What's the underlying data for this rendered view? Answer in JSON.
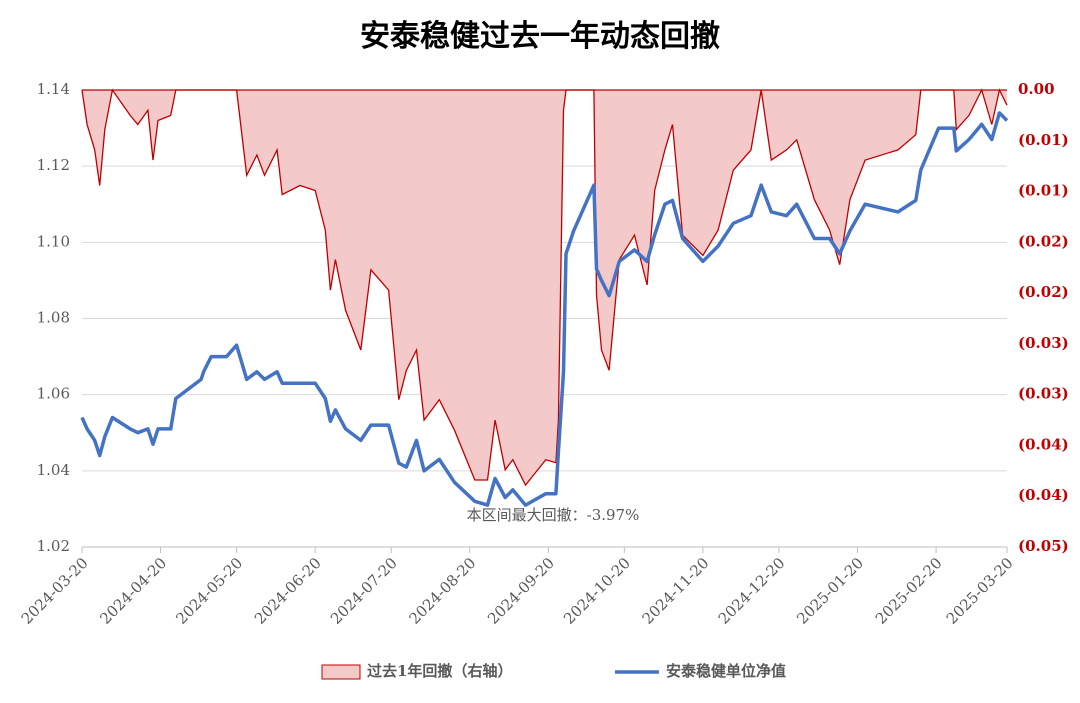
{
  "chart_data": {
    "type": "line",
    "title": "安泰稳健过去一年动态回撤",
    "annotation": "本区间最大回撤：-3.97%",
    "x": [
      "2024-03-20",
      "2024-03-22",
      "2024-03-25",
      "2024-03-27",
      "2024-03-29",
      "2024-04-01",
      "2024-04-08",
      "2024-04-11",
      "2024-04-15",
      "2024-04-17",
      "2024-04-19",
      "2024-04-24",
      "2024-04-26",
      "2024-05-06",
      "2024-05-07",
      "2024-05-10",
      "2024-05-16",
      "2024-05-20",
      "2024-05-24",
      "2024-05-28",
      "2024-05-31",
      "2024-06-05",
      "2024-06-07",
      "2024-06-14",
      "2024-06-20",
      "2024-06-24",
      "2024-06-26",
      "2024-06-28",
      "2024-07-02",
      "2024-07-08",
      "2024-07-12",
      "2024-07-19",
      "2024-07-23",
      "2024-07-26",
      "2024-07-30",
      "2024-08-02",
      "2024-08-08",
      "2024-08-14",
      "2024-08-22",
      "2024-08-27",
      "2024-08-30",
      "2024-09-03",
      "2024-09-06",
      "2024-09-11",
      "2024-09-19",
      "2024-09-23",
      "2024-09-24",
      "2024-09-26",
      "2024-09-27",
      "2024-09-30",
      "2024-10-08",
      "2024-10-09",
      "2024-10-11",
      "2024-10-14",
      "2024-10-18",
      "2024-10-24",
      "2024-10-29",
      "2024-11-01",
      "2024-11-05",
      "2024-11-08",
      "2024-11-12",
      "2024-11-20",
      "2024-11-26",
      "2024-12-02",
      "2024-12-09",
      "2024-12-13",
      "2024-12-17",
      "2024-12-23",
      "2024-12-27",
      "2025-01-03",
      "2025-01-09",
      "2025-01-13",
      "2025-01-17",
      "2025-01-23",
      "2025-02-05",
      "2025-02-12",
      "2025-02-14",
      "2025-02-21",
      "2025-02-27",
      "2025-02-28",
      "2025-03-05",
      "2025-03-10",
      "2025-03-14",
      "2025-03-17",
      "2025-03-20"
    ],
    "series": [
      {
        "name": "过去1年回撤（右轴）",
        "type": "area",
        "axis": "y2",
        "color": "#c00000",
        "fill": "#f4c9c9",
        "values": [
          0,
          -0.0034,
          -0.0059,
          -0.0094,
          -0.0039,
          0,
          -0.0025,
          -0.0034,
          -0.002,
          -0.0069,
          -0.003,
          -0.0025,
          0,
          0,
          0,
          0,
          0,
          0,
          -0.0084,
          -0.0064,
          -0.0084,
          -0.0059,
          -0.0103,
          -0.0094,
          -0.0099,
          -0.0138,
          -0.0197,
          -0.0167,
          -0.0217,
          -0.0256,
          -0.0177,
          -0.0197,
          -0.0305,
          -0.0276,
          -0.0256,
          -0.0325,
          -0.0305,
          -0.0335,
          -0.0384,
          -0.0384,
          -0.0325,
          -0.0374,
          -0.0364,
          -0.0389,
          -0.0364,
          -0.0367,
          -0.0325,
          -0.002,
          0,
          0,
          0,
          -0.0202,
          -0.0256,
          -0.0276,
          -0.0167,
          -0.0143,
          -0.0192,
          -0.0099,
          -0.0059,
          -0.0034,
          -0.0143,
          -0.0163,
          -0.0138,
          -0.0079,
          -0.0059,
          0,
          -0.0069,
          -0.0059,
          -0.0049,
          -0.0108,
          -0.0138,
          -0.0172,
          -0.0108,
          -0.0069,
          -0.0059,
          -0.0044,
          0,
          0,
          0,
          -0.0039,
          -0.0025,
          0,
          -0.0034,
          0,
          -0.0015
        ]
      },
      {
        "name": "安泰稳健单位净值",
        "type": "line",
        "color": "#4472c4",
        "values": [
          1.054,
          1.051,
          1.048,
          1.044,
          1.049,
          1.054,
          1.051,
          1.05,
          1.051,
          1.047,
          1.051,
          1.051,
          1.059,
          1.064,
          1.066,
          1.07,
          1.07,
          1.073,
          1.064,
          1.066,
          1.064,
          1.066,
          1.063,
          1.063,
          1.063,
          1.059,
          1.053,
          1.056,
          1.051,
          1.048,
          1.052,
          1.052,
          1.042,
          1.041,
          1.048,
          1.04,
          1.043,
          1.037,
          1.032,
          1.031,
          1.038,
          1.033,
          1.035,
          1.031,
          1.034,
          1.034,
          1.045,
          1.066,
          1.097,
          1.103,
          1.115,
          1.093,
          1.09,
          1.086,
          1.095,
          1.098,
          1.095,
          1.102,
          1.11,
          1.111,
          1.101,
          1.095,
          1.099,
          1.105,
          1.107,
          1.115,
          1.108,
          1.107,
          1.11,
          1.101,
          1.101,
          1.097,
          1.103,
          1.11,
          1.108,
          1.111,
          1.119,
          1.13,
          1.13,
          1.124,
          1.127,
          1.131,
          1.127,
          1.134,
          1.132
        ]
      }
    ],
    "xlim": [
      "2024-03-20",
      "2025-03-20"
    ],
    "xticks": [
      "2024-03-20",
      "2024-04-20",
      "2024-05-20",
      "2024-06-20",
      "2024-07-20",
      "2024-08-20",
      "2024-09-20",
      "2024-10-20",
      "2024-11-20",
      "2024-12-20",
      "2025-01-20",
      "2025-02-20",
      "2025-03-20"
    ],
    "ylim": [
      1.02,
      1.14
    ],
    "yticks": [
      1.02,
      1.04,
      1.06,
      1.08,
      {
        "value": 1.1,
        "label": "1.10"
      },
      1.12,
      1.14
    ],
    "y2lim": [
      -0.045,
      0
    ],
    "y2ticks": [
      {
        "value": 0,
        "label": "0.00"
      },
      {
        "value": -0.005,
        "label": "(0.01)"
      },
      {
        "value": -0.01,
        "label": "(0.01)"
      },
      {
        "value": -0.015,
        "label": "(0.02)"
      },
      {
        "value": -0.02,
        "label": "(0.02)"
      },
      {
        "value": -0.025,
        "label": "(0.03)"
      },
      {
        "value": -0.03,
        "label": "(0.03)"
      },
      {
        "value": -0.035,
        "label": "(0.04)"
      },
      {
        "value": -0.04,
        "label": "(0.04)"
      },
      {
        "value": -0.045,
        "label": "(0.05)"
      }
    ],
    "grid": true,
    "legend": "bottom"
  }
}
